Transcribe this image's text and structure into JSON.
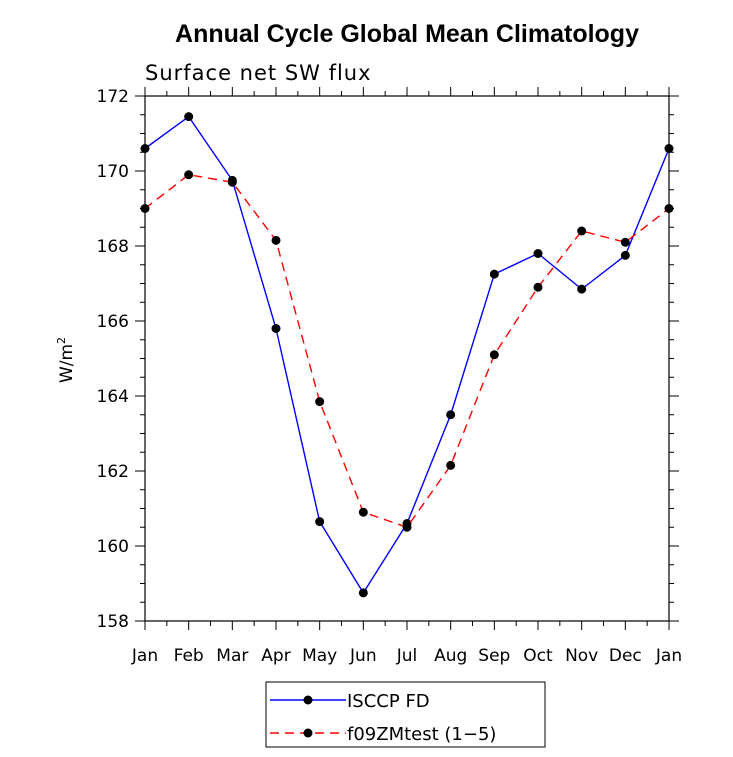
{
  "chart_data": {
    "type": "line",
    "title": "Annual Cycle Global Mean Climatology",
    "subtitle": "Surface net SW flux",
    "ylabel": "W/m",
    "ylabel_superscript": "2",
    "xlabel": "",
    "categories": [
      "Jan",
      "Feb",
      "Mar",
      "Apr",
      "May",
      "Jun",
      "Jul",
      "Aug",
      "Sep",
      "Oct",
      "Nov",
      "Dec",
      "Jan"
    ],
    "ylim": [
      158,
      172
    ],
    "yticks": [
      158,
      160,
      162,
      164,
      166,
      168,
      170,
      172
    ],
    "ytick_labels": [
      "158",
      "160",
      "162",
      "164",
      "166",
      "168",
      "170",
      "172"
    ],
    "grid": false,
    "legend_position": "bottom-center",
    "series": [
      {
        "name": "ISCCP FD",
        "color": "#0000ff",
        "style": "solid",
        "marker": "filled-circle",
        "values": [
          170.6,
          171.45,
          169.75,
          165.8,
          160.65,
          158.75,
          160.6,
          163.5,
          167.25,
          167.8,
          166.85,
          167.75,
          170.6
        ]
      },
      {
        "name": "f09ZMtest (1−5)",
        "color": "#ff0000",
        "style": "dashed",
        "marker": "filled-circle",
        "values": [
          169.0,
          169.9,
          169.7,
          168.15,
          163.85,
          160.9,
          160.5,
          162.15,
          165.1,
          166.9,
          168.4,
          168.1,
          169.0
        ]
      }
    ]
  }
}
